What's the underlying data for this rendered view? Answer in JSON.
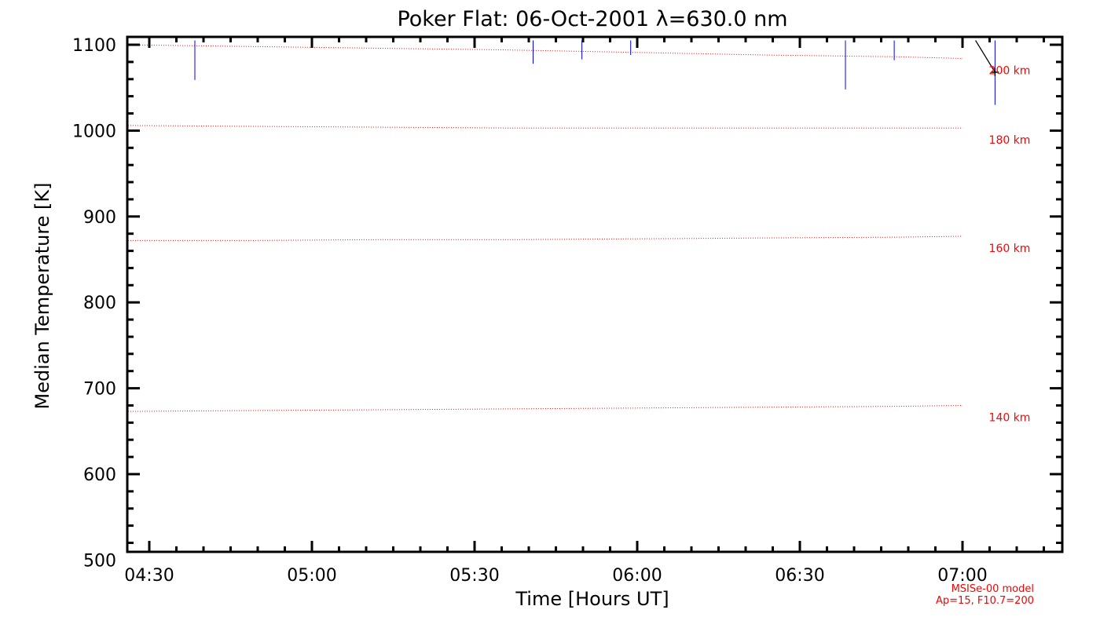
{
  "chart_data": {
    "type": "line",
    "title": "Poker Flat: 06-Oct-2001 λ=630.0 nm",
    "xlabel": "Time [Hours UT]",
    "ylabel": "Median Temperature [K]",
    "xlim": [
      4.42,
      7.42
    ],
    "ylim": [
      490,
      1105
    ],
    "x_ticks": [
      4.5,
      5.0,
      5.5,
      6.0,
      6.5,
      7.0
    ],
    "x_tick_labels": [
      "04:30",
      "05:00",
      "05:30",
      "06:00",
      "06:30",
      "07:00"
    ],
    "y_ticks": [
      500,
      600,
      700,
      800,
      900,
      1000,
      1100
    ],
    "y_tick_labels": [
      "500",
      "600",
      "700",
      "800",
      "900",
      "1000",
      "1100"
    ],
    "model_series": [
      {
        "name": "200 km",
        "label": "200 km",
        "x": [
          4.42,
          4.8,
          5.2,
          5.6,
          6.0,
          6.4,
          6.8,
          7.0
        ],
        "values": [
          1100,
          1098,
          1096,
          1094,
          1091,
          1088,
          1086,
          1084
        ]
      },
      {
        "name": "180 km",
        "label": "180 km",
        "x": [
          4.42,
          4.8,
          5.2,
          5.6,
          6.0,
          6.4,
          6.8,
          7.0
        ],
        "values": [
          1006,
          1005,
          1004,
          1003,
          1003,
          1003,
          1003,
          1003
        ]
      },
      {
        "name": "160 km",
        "label": "160 km",
        "x": [
          4.42,
          4.8,
          5.2,
          5.6,
          6.0,
          6.4,
          6.8,
          7.0
        ],
        "values": [
          872,
          872,
          873,
          873,
          874,
          875,
          876,
          877
        ]
      },
      {
        "name": "140 km",
        "label": "140 km",
        "x": [
          4.42,
          4.8,
          5.2,
          5.6,
          6.0,
          6.4,
          6.8,
          7.0
        ],
        "values": [
          673,
          674,
          675,
          676,
          677,
          678,
          679,
          680
        ]
      }
    ],
    "error_bars": [
      {
        "x": 4.64,
        "low": 1059,
        "high": 1105
      },
      {
        "x": 5.68,
        "low": 1078,
        "high": 1105
      },
      {
        "x": 5.83,
        "low": 1083,
        "high": 1105
      },
      {
        "x": 5.98,
        "low": 1088,
        "high": 1105
      },
      {
        "x": 6.64,
        "low": 1048,
        "high": 1105
      },
      {
        "x": 6.79,
        "low": 1082,
        "high": 1105
      },
      {
        "x": 7.1,
        "low": 1030,
        "high": 1105
      }
    ],
    "data_line": {
      "x": [
        7.04,
        7.1
      ],
      "values": [
        1105,
        1068
      ]
    },
    "data_point": {
      "x": 7.1,
      "value": 1068
    },
    "model_note": [
      "MSISe-00 model",
      "Ap=15, F10.7=200"
    ],
    "colors": {
      "axes": "#000000",
      "model": "#ff0000",
      "error": "#0000ff",
      "data": "#000000"
    }
  }
}
